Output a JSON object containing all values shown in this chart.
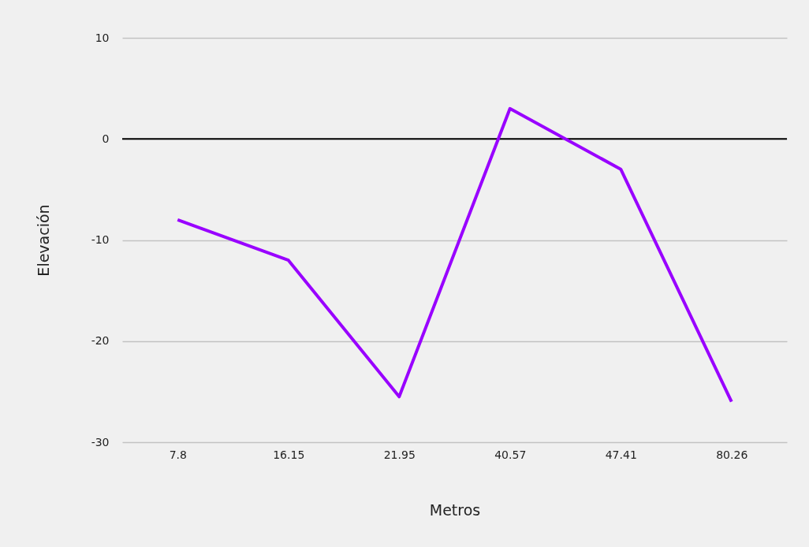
{
  "chart_data": {
    "type": "line",
    "xlabel": "Metros",
    "ylabel": "Elevación",
    "categories": [
      "7.8",
      "16.15",
      "21.95",
      "40.57",
      "47.41",
      "80.26"
    ],
    "series": [
      {
        "color": "#9900ff",
        "values": [
          -8,
          -12,
          -25.5,
          3,
          -3,
          -26
        ]
      }
    ],
    "ylim": [
      -30,
      10
    ],
    "yticks": [
      -30,
      -20,
      -10,
      0,
      10
    ],
    "grid": "y",
    "ref_lines": [
      {
        "axis": "y",
        "value": 0,
        "color": "#000000"
      }
    ]
  }
}
